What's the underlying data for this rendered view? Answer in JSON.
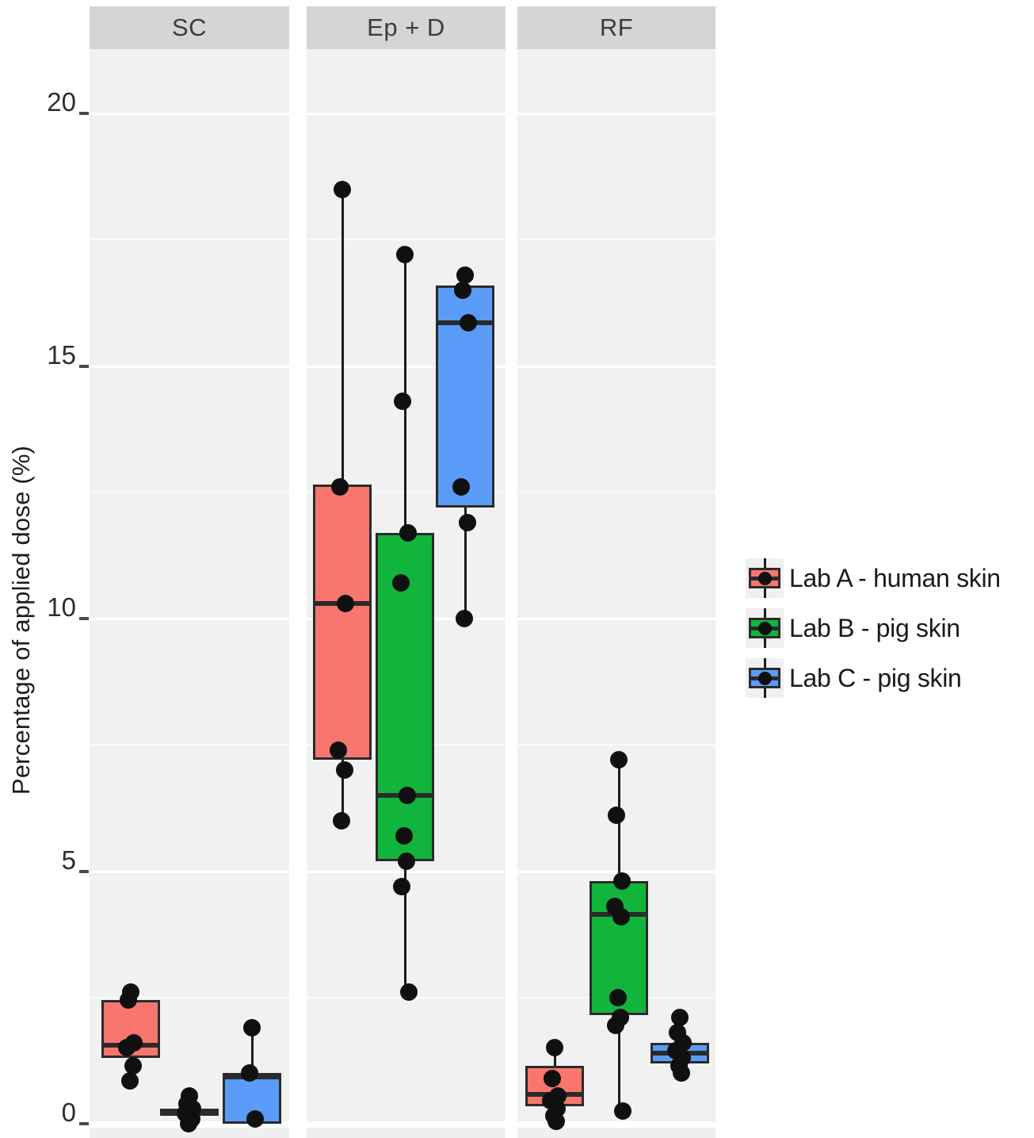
{
  "figure": {
    "y_axis_title": "Percentage of applied dose (%)"
  },
  "chart_data": {
    "type": "boxplot",
    "title": "",
    "xlabel": "",
    "ylabel": "Percentage of applied dose (%)",
    "ylim": [
      0,
      21.3
    ],
    "yticks": [
      0,
      5,
      10,
      15,
      20
    ],
    "grid": "white major gridlines every 5, minor every 2.5, on light grey facet panels",
    "legend_position": "right",
    "facet_labels": [
      "SC",
      "Ep + D",
      "RF"
    ],
    "series": [
      {
        "name": "Lab A - human skin",
        "color": "#F8766D"
      },
      {
        "name": "Lab B - pig skin",
        "color": "#12B53C"
      },
      {
        "name": "Lab C - pig skin",
        "color": "#5B9BF8"
      }
    ],
    "facets": [
      {
        "label": "SC",
        "groups": [
          {
            "series": "Lab A - human skin",
            "box": {
              "q1": 1.3,
              "median": 1.55,
              "q3": 2.45,
              "whisker_low": 1.3,
              "whisker_high": 2.45
            },
            "points": [
              2.6,
              2.45,
              1.6,
              1.5,
              1.15,
              0.85
            ]
          },
          {
            "series": "Lab B - pig skin",
            "box": {
              "q1": 0.15,
              "median": 0.25,
              "q3": 0.3,
              "whisker_low": 0.15,
              "whisker_high": 0.3
            },
            "points": [
              0.55,
              0.4,
              0.3,
              0.2,
              0.1,
              0.0
            ]
          },
          {
            "series": "Lab C - pig skin",
            "box": {
              "q1": 0.0,
              "median": 0.93,
              "q3": 1.0,
              "whisker_low": 0.0,
              "whisker_high": 1.9
            },
            "points": [
              1.9,
              1.0,
              0.1
            ]
          }
        ]
      },
      {
        "label": "Ep + D",
        "groups": [
          {
            "series": "Lab A - human skin",
            "box": {
              "q1": 7.2,
              "median": 10.3,
              "q3": 12.65,
              "whisker_low": 6.0,
              "whisker_high": 18.5
            },
            "points": [
              18.5,
              12.6,
              10.3,
              7.4,
              7.0,
              6.0
            ]
          },
          {
            "series": "Lab B - pig skin",
            "box": {
              "q1": 5.2,
              "median": 6.5,
              "q3": 11.7,
              "whisker_low": 2.6,
              "whisker_high": 17.2
            },
            "points": [
              17.2,
              14.3,
              11.7,
              10.7,
              6.5,
              5.7,
              5.2,
              4.7,
              2.6
            ]
          },
          {
            "series": "Lab C - pig skin",
            "box": {
              "q1": 12.2,
              "median": 15.85,
              "q3": 16.6,
              "whisker_low": 10.0,
              "whisker_high": 16.6
            },
            "points": [
              16.8,
              16.5,
              15.85,
              12.6,
              11.9,
              10.0
            ]
          }
        ]
      },
      {
        "label": "RF",
        "groups": [
          {
            "series": "Lab A - human skin",
            "box": {
              "q1": 0.35,
              "median": 0.58,
              "q3": 1.15,
              "whisker_low": 0.35,
              "whisker_high": 1.5
            },
            "points": [
              1.5,
              0.9,
              0.55,
              0.45,
              0.3,
              0.15,
              0.05
            ]
          },
          {
            "series": "Lab B - pig skin",
            "box": {
              "q1": 2.15,
              "median": 4.15,
              "q3": 4.8,
              "whisker_low": 0.25,
              "whisker_high": 7.2
            },
            "points": [
              7.2,
              6.1,
              4.8,
              4.3,
              4.1,
              2.5,
              2.1,
              1.95,
              0.25
            ]
          },
          {
            "series": "Lab C - pig skin",
            "box": {
              "q1": 1.2,
              "median": 1.4,
              "q3": 1.6,
              "whisker_low": 1.2,
              "whisker_high": 2.1
            },
            "points": [
              2.1,
              1.8,
              1.6,
              1.45,
              1.3,
              1.15,
              1.0
            ]
          }
        ]
      }
    ]
  }
}
